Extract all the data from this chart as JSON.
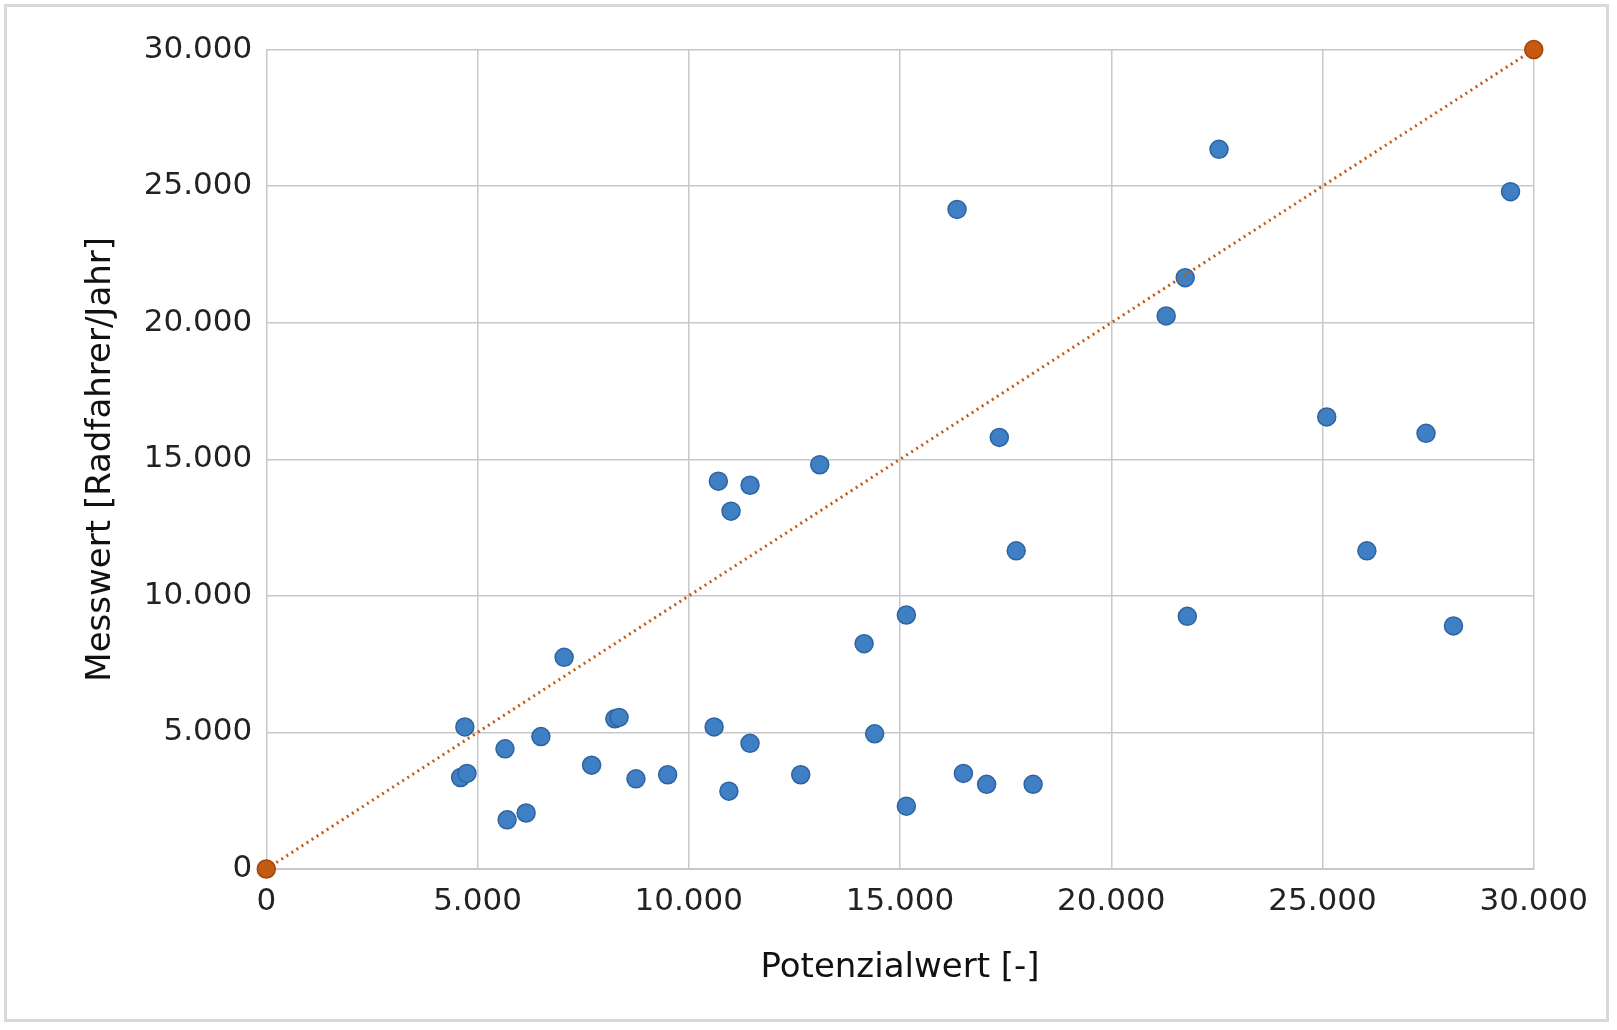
{
  "chart_data": {
    "type": "scatter",
    "xlabel": "Potenzialwert [-]",
    "ylabel": "Messwert [Radfahrer/Jahr]",
    "xlim": [
      0,
      30000
    ],
    "ylim": [
      0,
      30000
    ],
    "xticks": [
      0,
      {
        "value": 5000,
        "label": "5.000"
      },
      {
        "value": 10000,
        "label": "10.000"
      },
      {
        "value": 15000,
        "label": "15.000"
      },
      {
        "value": 20000,
        "label": "20.000"
      },
      {
        "value": 25000,
        "label": "25.000"
      },
      {
        "value": 30000,
        "label": "30.000"
      }
    ],
    "yticks": [
      0,
      {
        "value": 5000,
        "label": "5.000"
      },
      {
        "value": 10000,
        "label": "10.000"
      },
      {
        "value": 15000,
        "label": "15.000"
      },
      {
        "value": 20000,
        "label": "20.000"
      },
      {
        "value": 25000,
        "label": "25.000"
      },
      {
        "value": 30000,
        "label": "30.000"
      }
    ],
    "grid": true,
    "marker": "circle",
    "series": [
      {
        "type": "scatter",
        "color": "#3f7fc4",
        "x": [
          4700,
          4600,
          4750,
          5650,
          5700,
          6150,
          6500,
          7050,
          7700,
          8250,
          8350,
          8750,
          9500,
          10600,
          10700,
          11000,
          11450,
          10950,
          11450,
          12650,
          13100,
          14150,
          14400,
          15150,
          15150,
          16350,
          16500,
          17050,
          17350,
          17750,
          18150,
          21300,
          21750,
          21800,
          22550,
          25100,
          26050,
          27450,
          28100,
          29450
        ],
        "values": [
          5200,
          3350,
          3500,
          4400,
          1800,
          2050,
          4850,
          7750,
          3800,
          5500,
          5550,
          3300,
          3450,
          5200,
          14200,
          13100,
          14050,
          2850,
          4600,
          3450,
          14800,
          8250,
          4950,
          9300,
          2300,
          24150,
          3500,
          3100,
          15800,
          11650,
          3100,
          20250,
          21650,
          9250,
          26350,
          16550,
          11650,
          15950,
          8900,
          24800
        ]
      },
      {
        "type": "line",
        "color": "#c55a11",
        "line_style": "dotted",
        "x": [
          0,
          30000
        ],
        "values": [
          0,
          30000
        ]
      }
    ]
  }
}
